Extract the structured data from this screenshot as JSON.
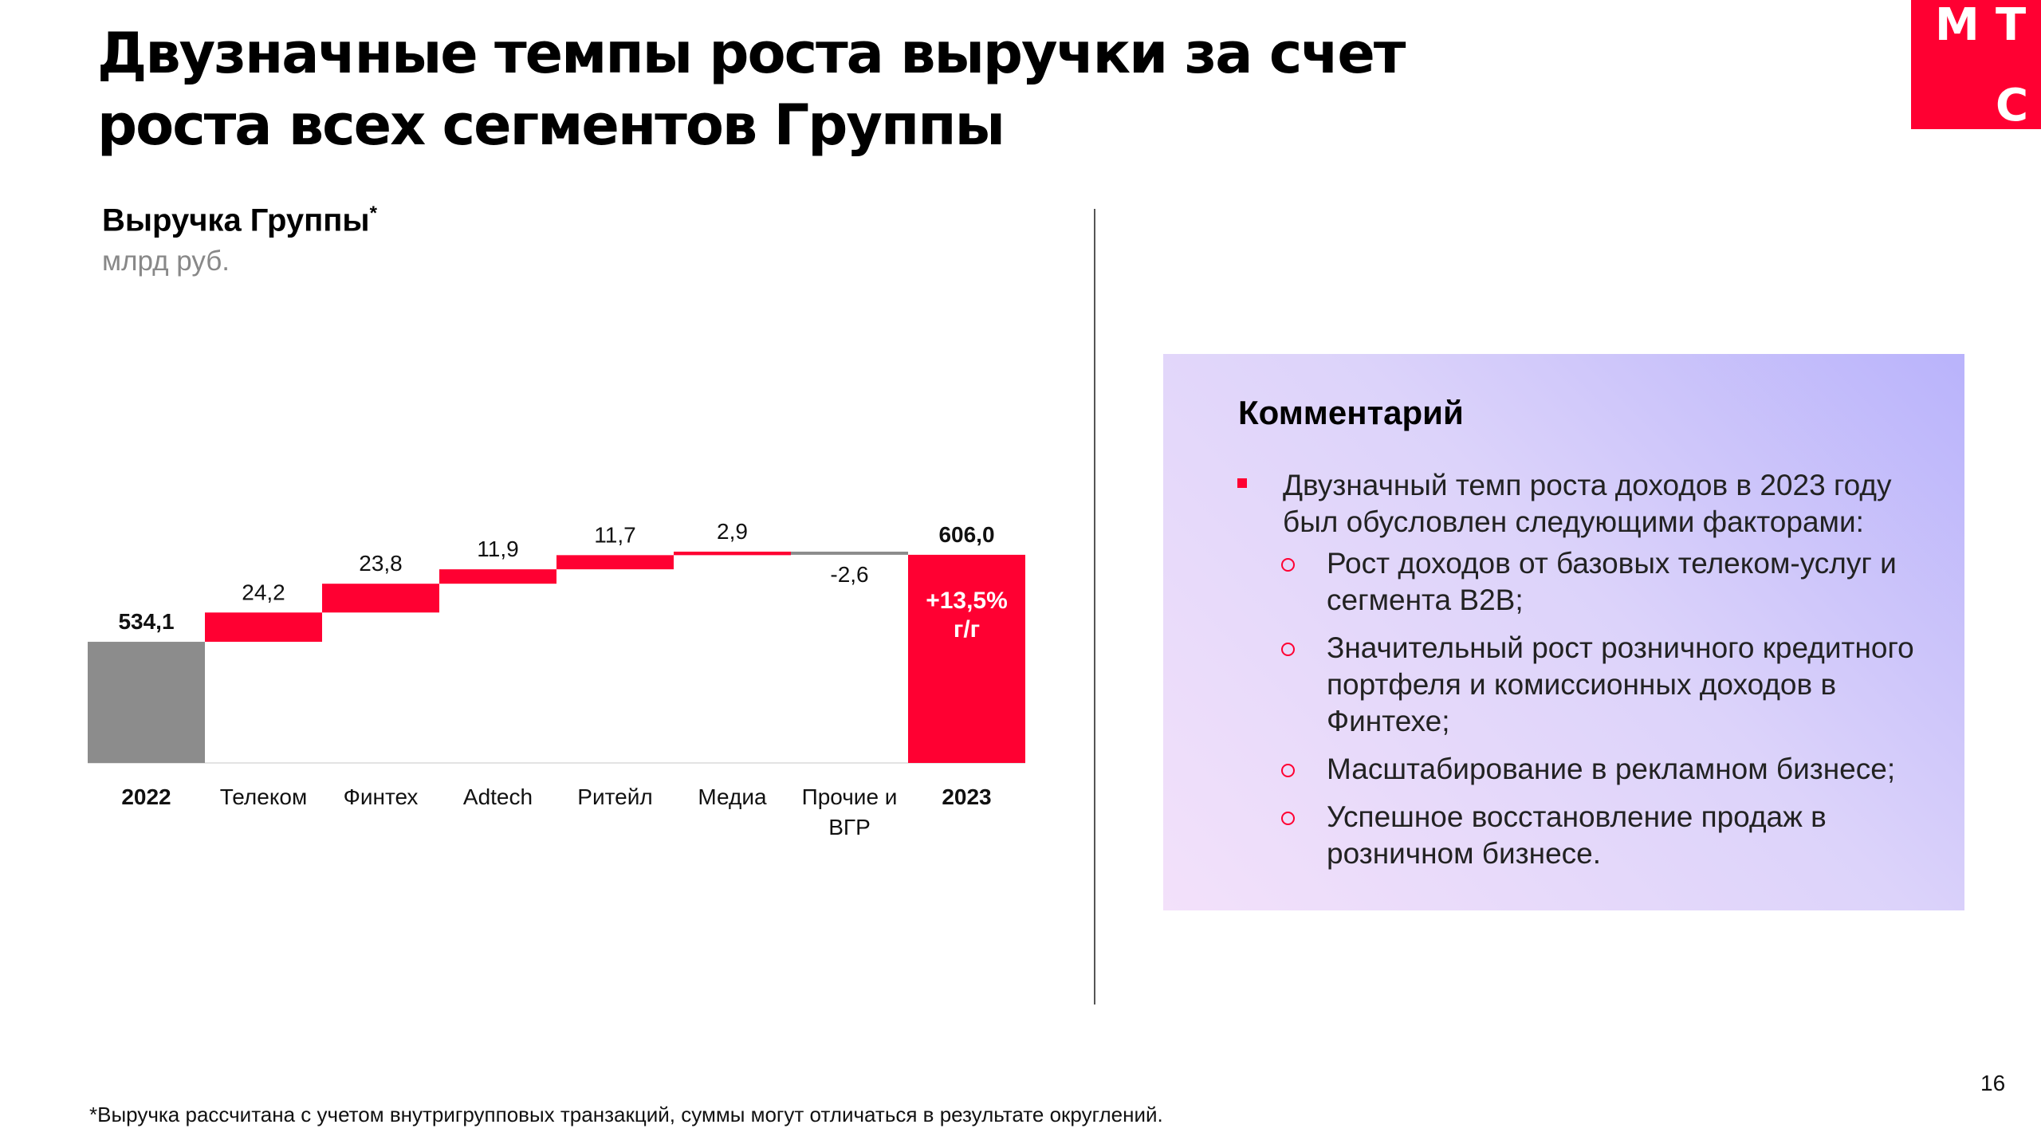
{
  "title": {
    "line1": "Двузначные темпы роста выручки за счет",
    "line2": "роста всех сегментов Группы"
  },
  "logo": {
    "letter1": "М",
    "letter2": "Т",
    "letter3": "С"
  },
  "chart_header": {
    "title": "Выручка Группы",
    "footnote_mark": "*",
    "unit": "млрд руб."
  },
  "colors": {
    "accent": "#ff0032",
    "total_2022": "#8c8c8c",
    "negative": "#8c8c8c"
  },
  "chart_data": {
    "type": "waterfall",
    "title": "Выручка Группы*",
    "ylabel": "млрд руб.",
    "categories": [
      "2022",
      "Телеком",
      "Финтех",
      "Adtech",
      "Ритейл",
      "Медиа",
      "Прочие и ВГР",
      "2023"
    ],
    "category_lines": [
      [
        "2022"
      ],
      [
        "Телеком"
      ],
      [
        "Финтех"
      ],
      [
        "Adtech"
      ],
      [
        "Ритейл"
      ],
      [
        "Медиа"
      ],
      [
        "Прочие и",
        "ВГР"
      ],
      [
        "2023"
      ]
    ],
    "values": [
      534.1,
      24.2,
      23.8,
      11.9,
      11.7,
      2.9,
      -2.6,
      606.0
    ],
    "value_labels": [
      "534,1",
      "24,2",
      "23,8",
      "11,9",
      "11,7",
      "2,9",
      "-2,6",
      "606,0"
    ],
    "kinds": [
      "total",
      "delta",
      "delta",
      "delta",
      "delta",
      "delta",
      "delta",
      "total"
    ],
    "growth_annotation": [
      "+13,5%",
      "г/г"
    ]
  },
  "comment": {
    "title": "Комментарий",
    "main_bullet": "Двузначный темп роста доходов в 2023 году был обусловлен следующими факторами:",
    "sub_bullets": [
      "Рост доходов от базовых телеком-услуг и сегмента B2B;",
      "Значительный рост розничного кредитного портфеля и комиссионных доходов в Финтехе;",
      "Масштабирование в рекламном бизнесе;",
      "Успешное восстановление продаж в розничном бизнесе."
    ]
  },
  "footnote": "*Выручка рассчитана с учетом внутригрупповых транзакций, суммы могут отличаться в результате округлений.",
  "page_number": "16"
}
